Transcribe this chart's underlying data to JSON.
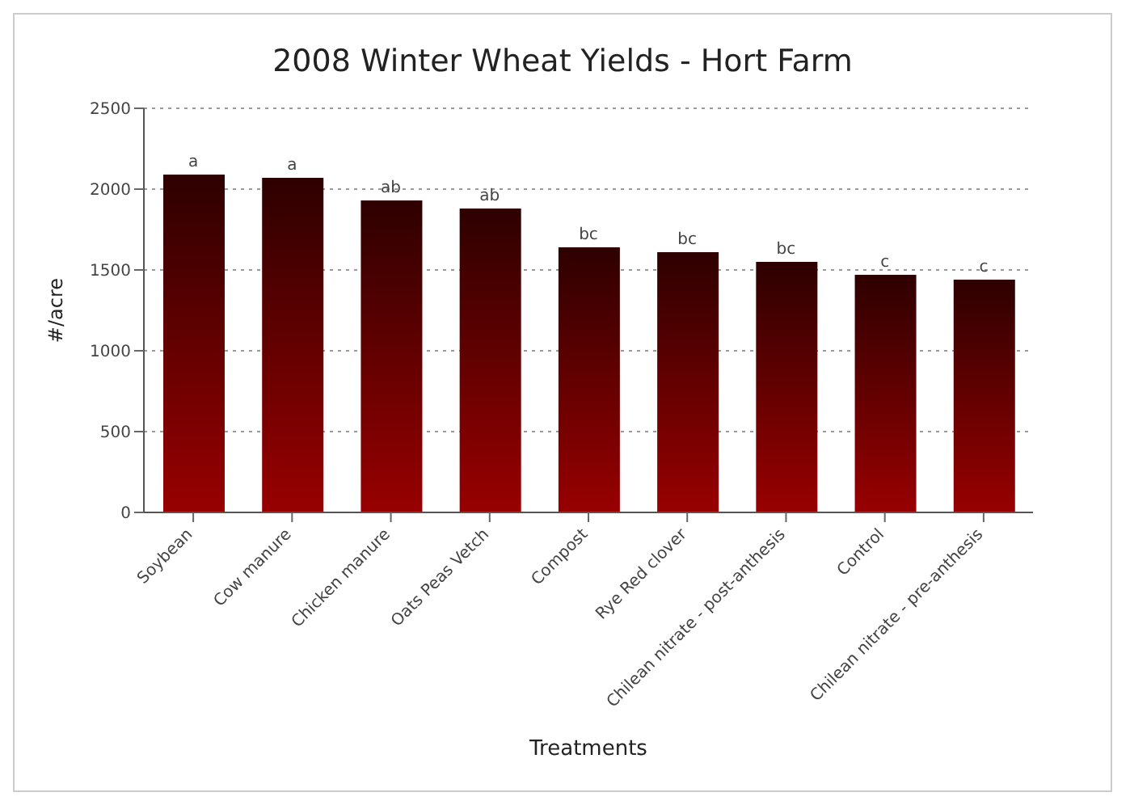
{
  "chart_data": {
    "type": "bar",
    "title": "2008 Winter Wheat Yields - Hort Farm",
    "xlabel": "Treatments",
    "ylabel": "#/acre",
    "categories": [
      "Soybean",
      "Cow manure",
      "Chicken manure",
      "Oats Peas Vetch",
      "Compost",
      "Rye Red clover",
      "Chilean nitrate - post-anthesis",
      "Control",
      "Chilean nitrate - pre-anthesis"
    ],
    "values": [
      2090,
      2070,
      1930,
      1880,
      1640,
      1610,
      1550,
      1470,
      1440
    ],
    "color": "#990000",
    "ylim": [
      0,
      2500
    ],
    "yticks": [
      0,
      500,
      1000,
      1500,
      2000,
      2500
    ],
    "grid": "y",
    "annotations": [
      {
        "text": "a",
        "x": "Soybean",
        "y": 2090
      },
      {
        "text": "a",
        "x": "Cow manure",
        "y": 2070
      },
      {
        "text": "ab",
        "x": "Chicken manure",
        "y": 1930
      },
      {
        "text": "ab",
        "x": "Oats Peas Vetch",
        "y": 1880
      },
      {
        "text": "bc",
        "x": "Compost",
        "y": 1640
      },
      {
        "text": "bc",
        "x": "Rye Red clover",
        "y": 1610
      },
      {
        "text": "bc",
        "x": "Chilean nitrate - post-anthesis",
        "y": 1550
      },
      {
        "text": "c",
        "x": "Control",
        "y": 1470
      },
      {
        "text": "c",
        "x": "Chilean nitrate - pre-anthesis",
        "y": 1440
      }
    ]
  }
}
